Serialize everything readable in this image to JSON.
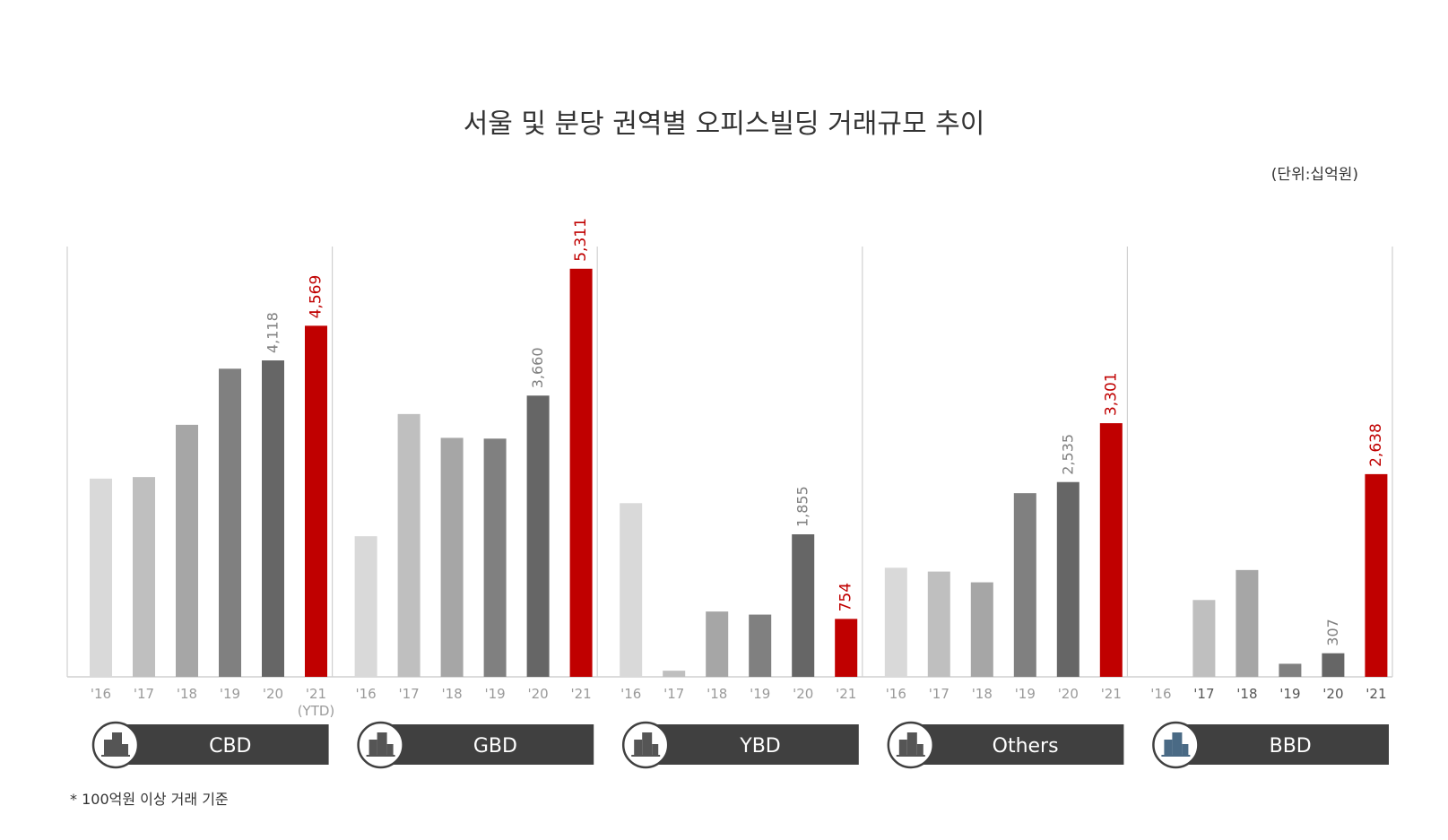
{
  "chart_data": {
    "type": "bar",
    "title": "서울 및 분당 권역별 오피스빌딩 거래규모 추이",
    "unit_label": "(단위:십억원)",
    "footnote": "* 100억원 이상 거래 기준",
    "ylim": [
      0,
      6000
    ],
    "colors": {
      "years": [
        "#d9d9d9",
        "#bfbfbf",
        "#a6a6a6",
        "#808080",
        "#666666",
        "#c00000"
      ],
      "label_grey": "#808080",
      "label_red": "#c00000",
      "tab_bg": "#404040",
      "axis": "#d0d0d0"
    },
    "panels": [
      {
        "name": "CBD",
        "icon": "building-icon",
        "categories": [
          "'16",
          "'17",
          "'18",
          "'19",
          "'20",
          "'21"
        ],
        "sub_label": "(YTD)",
        "values": [
          2580,
          2600,
          3280,
          4010,
          4118,
          4569
        ],
        "labels": [
          "",
          "",
          "",
          "",
          "4,118",
          "4,569"
        ]
      },
      {
        "name": "GBD",
        "icon": "building-icon",
        "categories": [
          "'16",
          "'17",
          "'18",
          "'19",
          "'20",
          "'21"
        ],
        "values": [
          1830,
          3420,
          3110,
          3100,
          3660,
          5311
        ],
        "labels": [
          "",
          "",
          "",
          "",
          "3,660",
          "5,311"
        ]
      },
      {
        "name": "YBD",
        "icon": "building-icon",
        "categories": [
          "'16",
          "'17",
          "'18",
          "'19",
          "'20",
          "'21"
        ],
        "values": [
          2260,
          80,
          850,
          810,
          1855,
          754
        ],
        "labels": [
          "",
          "",
          "",
          "",
          "1,855",
          "754"
        ]
      },
      {
        "name": "Others",
        "icon": "building-icon",
        "categories": [
          "'16",
          "'17",
          "'18",
          "'19",
          "'20",
          "'21"
        ],
        "values": [
          1420,
          1370,
          1230,
          2390,
          2535,
          3301
        ],
        "labels": [
          "",
          "",
          "",
          "",
          "2,535",
          "3,301"
        ]
      },
      {
        "name": "BBD",
        "icon": "building-icon",
        "categories": [
          "'16",
          "'17",
          "'18",
          "'19",
          "'20",
          "'21"
        ],
        "values": [
          0,
          1000,
          1390,
          170,
          307,
          2638
        ],
        "labels": [
          "",
          "",
          "",
          "",
          "307",
          "2,638"
        ]
      }
    ]
  }
}
